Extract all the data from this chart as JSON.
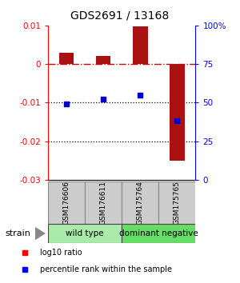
{
  "title": "GDS2691 / 13168",
  "samples": [
    "GSM176606",
    "GSM176611",
    "GSM175764",
    "GSM175765"
  ],
  "log10_ratio": [
    0.003,
    0.002,
    0.0098,
    -0.025
  ],
  "percentile_rank": [
    49,
    52,
    55,
    38
  ],
  "groups": [
    {
      "label": "wild type",
      "cols": [
        0,
        1
      ],
      "color": "#aaeaaa"
    },
    {
      "label": "dominant negative",
      "cols": [
        2,
        3
      ],
      "color": "#66dd66"
    }
  ],
  "ylim_left": [
    -0.03,
    0.01
  ],
  "ylim_right": [
    0,
    100
  ],
  "yticks_left": [
    -0.03,
    -0.02,
    -0.01,
    0.0,
    0.01
  ],
  "ytick_labels_left": [
    "-0.03",
    "-0.02",
    "-0.01",
    "0",
    "0.01"
  ],
  "yticks_right": [
    0,
    25,
    50,
    75,
    100
  ],
  "ytick_labels_right": [
    "0",
    "25",
    "50",
    "75",
    "100%"
  ],
  "bar_color": "#aa1111",
  "dot_color": "#0000cc",
  "zero_line_color": "#cc0000",
  "hline_color": "#000000",
  "bar_width": 0.4,
  "dot_size": 5,
  "legend_red_label": "log10 ratio",
  "legend_blue_label": "percentile rank within the sample",
  "strain_label": "strain",
  "sample_box_color": "#cccccc",
  "sample_box_edge": "#888888"
}
